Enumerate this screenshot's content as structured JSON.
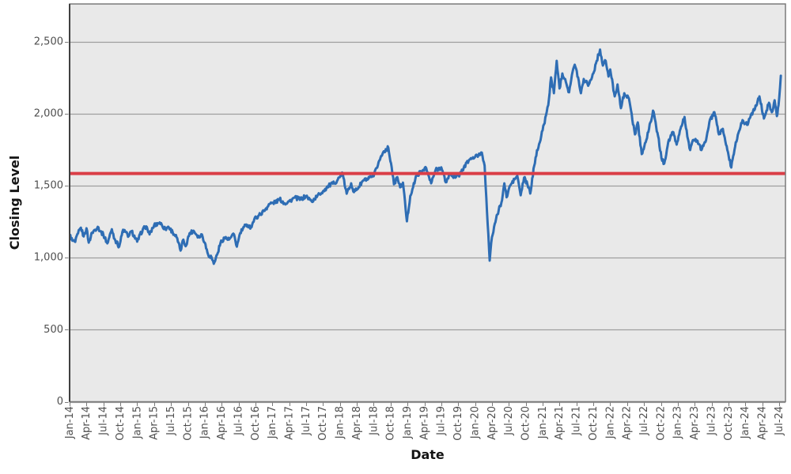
{
  "chart_data": {
    "type": "line",
    "title": "",
    "xlabel": "Date",
    "ylabel": "Closing Level",
    "grid": "horizontal",
    "legend": "none",
    "x_tick_interval_months": 3,
    "x_tick_labels": [
      "Jan-14",
      "Apr-14",
      "Jul-14",
      "Oct-14",
      "Jan-15",
      "Apr-15",
      "Jul-15",
      "Oct-15",
      "Jan-16",
      "Apr-16",
      "Jul-16",
      "Oct-16",
      "Jan-17",
      "Apr-17",
      "Jul-17",
      "Oct-17",
      "Jan-18",
      "Apr-18",
      "Jul-18",
      "Oct-18",
      "Jan-19",
      "Apr-19",
      "Jul-19",
      "Oct-19",
      "Jan-20",
      "Apr-20",
      "Jul-20",
      "Oct-20",
      "Jan-21",
      "Apr-21",
      "Jul-21",
      "Oct-21",
      "Jan-22",
      "Apr-22",
      "Jul-22",
      "Oct-22",
      "Jan-23",
      "Apr-23",
      "Jul-23",
      "Oct-23",
      "Jan-24",
      "Apr-24",
      "Jul-24"
    ],
    "y_ticks": [
      0,
      500,
      1000,
      1500,
      2000,
      2500
    ],
    "y_tick_labels": [
      "0",
      "500",
      "1,000",
      "1,500",
      "2,000",
      "2,500"
    ],
    "ylim": [
      0,
      2763
    ],
    "xlim_months": [
      0,
      127.1
    ],
    "reference_line": {
      "value": 1585,
      "color": "#da3e47",
      "width": 4
    },
    "series": [
      {
        "name": "Closing Level",
        "color": "#2e6db4",
        "line_width": 3,
        "noise_amplitude": 14,
        "x_unit": "months after Jan-2014",
        "points": [
          [
            0,
            1160
          ],
          [
            0.5,
            1118
          ],
          [
            1,
            1110
          ],
          [
            1.5,
            1170
          ],
          [
            2,
            1209
          ],
          [
            2.5,
            1148
          ],
          [
            3,
            1205
          ],
          [
            3.4,
            1105
          ],
          [
            4,
            1175
          ],
          [
            5,
            1215
          ],
          [
            5.5,
            1182
          ],
          [
            6,
            1160
          ],
          [
            6.7,
            1100
          ],
          [
            7.5,
            1198
          ],
          [
            8,
            1130
          ],
          [
            8.8,
            1077
          ],
          [
            9.5,
            1195
          ],
          [
            10.5,
            1150
          ],
          [
            11,
            1185
          ],
          [
            12,
            1112
          ],
          [
            13,
            1198
          ],
          [
            13.6,
            1218
          ],
          [
            14.2,
            1162
          ],
          [
            15,
            1225
          ],
          [
            16,
            1245
          ],
          [
            17,
            1198
          ],
          [
            17.5,
            1216
          ],
          [
            18.3,
            1178
          ],
          [
            19,
            1142
          ],
          [
            19.7,
            1050
          ],
          [
            20.2,
            1126
          ],
          [
            20.6,
            1080
          ],
          [
            21.3,
            1170
          ],
          [
            22,
            1188
          ],
          [
            23,
            1142
          ],
          [
            23.5,
            1162
          ],
          [
            24,
            1105
          ],
          [
            24.6,
            1022
          ],
          [
            25.2,
            1004
          ],
          [
            25.6,
            958
          ],
          [
            26.2,
            1022
          ],
          [
            26.8,
            1104
          ],
          [
            27.5,
            1140
          ],
          [
            28.3,
            1126
          ],
          [
            29.2,
            1162
          ],
          [
            29.7,
            1077
          ],
          [
            30.3,
            1172
          ],
          [
            31,
            1215
          ],
          [
            31.6,
            1227
          ],
          [
            32.2,
            1210
          ],
          [
            32.8,
            1268
          ],
          [
            33.5,
            1291
          ],
          [
            34.5,
            1324
          ],
          [
            35.5,
            1374
          ],
          [
            36.5,
            1385
          ],
          [
            37.3,
            1407
          ],
          [
            38.2,
            1378
          ],
          [
            39,
            1392
          ],
          [
            40,
            1418
          ],
          [
            41,
            1405
          ],
          [
            42,
            1429
          ],
          [
            43,
            1390
          ],
          [
            44,
            1430
          ],
          [
            45,
            1462
          ],
          [
            46,
            1500
          ],
          [
            47,
            1518
          ],
          [
            48,
            1560
          ],
          [
            48.4,
            1592
          ],
          [
            49.2,
            1445
          ],
          [
            50,
            1517
          ],
          [
            50.5,
            1456
          ],
          [
            51.3,
            1489
          ],
          [
            52.2,
            1539
          ],
          [
            53,
            1545
          ],
          [
            54,
            1566
          ],
          [
            55,
            1676
          ],
          [
            55.8,
            1740
          ],
          [
            56.6,
            1764
          ],
          [
            57.2,
            1627
          ],
          [
            57.6,
            1511
          ],
          [
            58.2,
            1560
          ],
          [
            58.7,
            1489
          ],
          [
            59.2,
            1522
          ],
          [
            59.9,
            1253
          ],
          [
            60.5,
            1430
          ],
          [
            61,
            1490
          ],
          [
            61.6,
            1572
          ],
          [
            62.5,
            1600
          ],
          [
            63.2,
            1630
          ],
          [
            64.2,
            1517
          ],
          [
            65,
            1610
          ],
          [
            66,
            1628
          ],
          [
            66.8,
            1524
          ],
          [
            67.6,
            1583
          ],
          [
            68.5,
            1556
          ],
          [
            69.3,
            1580
          ],
          [
            70,
            1627
          ],
          [
            71,
            1682
          ],
          [
            72,
            1700
          ],
          [
            72.6,
            1712
          ],
          [
            73.2,
            1731
          ],
          [
            73.7,
            1640
          ],
          [
            74,
            1418
          ],
          [
            74.6,
            980
          ],
          [
            75,
            1143
          ],
          [
            75.5,
            1236
          ],
          [
            76.2,
            1330
          ],
          [
            76.8,
            1401
          ],
          [
            77.2,
            1517
          ],
          [
            77.6,
            1420
          ],
          [
            78.2,
            1500
          ],
          [
            79,
            1544
          ],
          [
            79.5,
            1570
          ],
          [
            80.1,
            1434
          ],
          [
            80.7,
            1556
          ],
          [
            81.3,
            1510
          ],
          [
            81.8,
            1446
          ],
          [
            82.5,
            1638
          ],
          [
            83,
            1747
          ],
          [
            83.5,
            1802
          ],
          [
            84,
            1885
          ],
          [
            84.6,
            1990
          ],
          [
            85,
            2060
          ],
          [
            85.5,
            2253
          ],
          [
            86,
            2143
          ],
          [
            86.5,
            2368
          ],
          [
            87,
            2176
          ],
          [
            87.5,
            2280
          ],
          [
            88,
            2242
          ],
          [
            88.7,
            2149
          ],
          [
            89.2,
            2270
          ],
          [
            89.7,
            2341
          ],
          [
            90.3,
            2253
          ],
          [
            90.8,
            2143
          ],
          [
            91.3,
            2242
          ],
          [
            92.2,
            2204
          ],
          [
            93,
            2280
          ],
          [
            93.6,
            2368
          ],
          [
            94.2,
            2446
          ],
          [
            94.7,
            2335
          ],
          [
            95.2,
            2368
          ],
          [
            95.7,
            2259
          ],
          [
            96,
            2308
          ],
          [
            96.8,
            2121
          ],
          [
            97.3,
            2204
          ],
          [
            97.9,
            2039
          ],
          [
            98.5,
            2143
          ],
          [
            99.2,
            2116
          ],
          [
            99.7,
            2022
          ],
          [
            100.4,
            1857
          ],
          [
            100.9,
            1940
          ],
          [
            101.6,
            1720
          ],
          [
            102.3,
            1802
          ],
          [
            102.9,
            1896
          ],
          [
            103.6,
            2022
          ],
          [
            104.5,
            1846
          ],
          [
            105.1,
            1692
          ],
          [
            105.6,
            1654
          ],
          [
            106.3,
            1802
          ],
          [
            107.1,
            1874
          ],
          [
            107.8,
            1786
          ],
          [
            108.6,
            1912
          ],
          [
            109.2,
            1978
          ],
          [
            109.7,
            1841
          ],
          [
            110.2,
            1748
          ],
          [
            110.8,
            1819
          ],
          [
            111.5,
            1813
          ],
          [
            112.2,
            1748
          ],
          [
            112.9,
            1803
          ],
          [
            113.6,
            1940
          ],
          [
            114.5,
            2011
          ],
          [
            115.3,
            1857
          ],
          [
            116,
            1896
          ],
          [
            116.8,
            1748
          ],
          [
            117.5,
            1627
          ],
          [
            118.3,
            1803
          ],
          [
            119.5,
            1956
          ],
          [
            120.3,
            1923
          ],
          [
            121,
            1995
          ],
          [
            121.7,
            2033
          ],
          [
            122.5,
            2121
          ],
          [
            123.3,
            1967
          ],
          [
            124.2,
            2077
          ],
          [
            124.7,
            2011
          ],
          [
            125.2,
            2094
          ],
          [
            125.6,
            1984
          ],
          [
            125.9,
            2061
          ],
          [
            126.3,
            2264
          ]
        ]
      }
    ],
    "style": {
      "plot_bg": "#e9e9e9",
      "outer_bg": "#ffffff",
      "gridline_color": "#9e9e9e",
      "tick_color": "#7a7a7a",
      "frame_color": "#7a7a7a",
      "axis_line_color": "#404040",
      "tick_label_color": "#4f4f4f"
    }
  }
}
